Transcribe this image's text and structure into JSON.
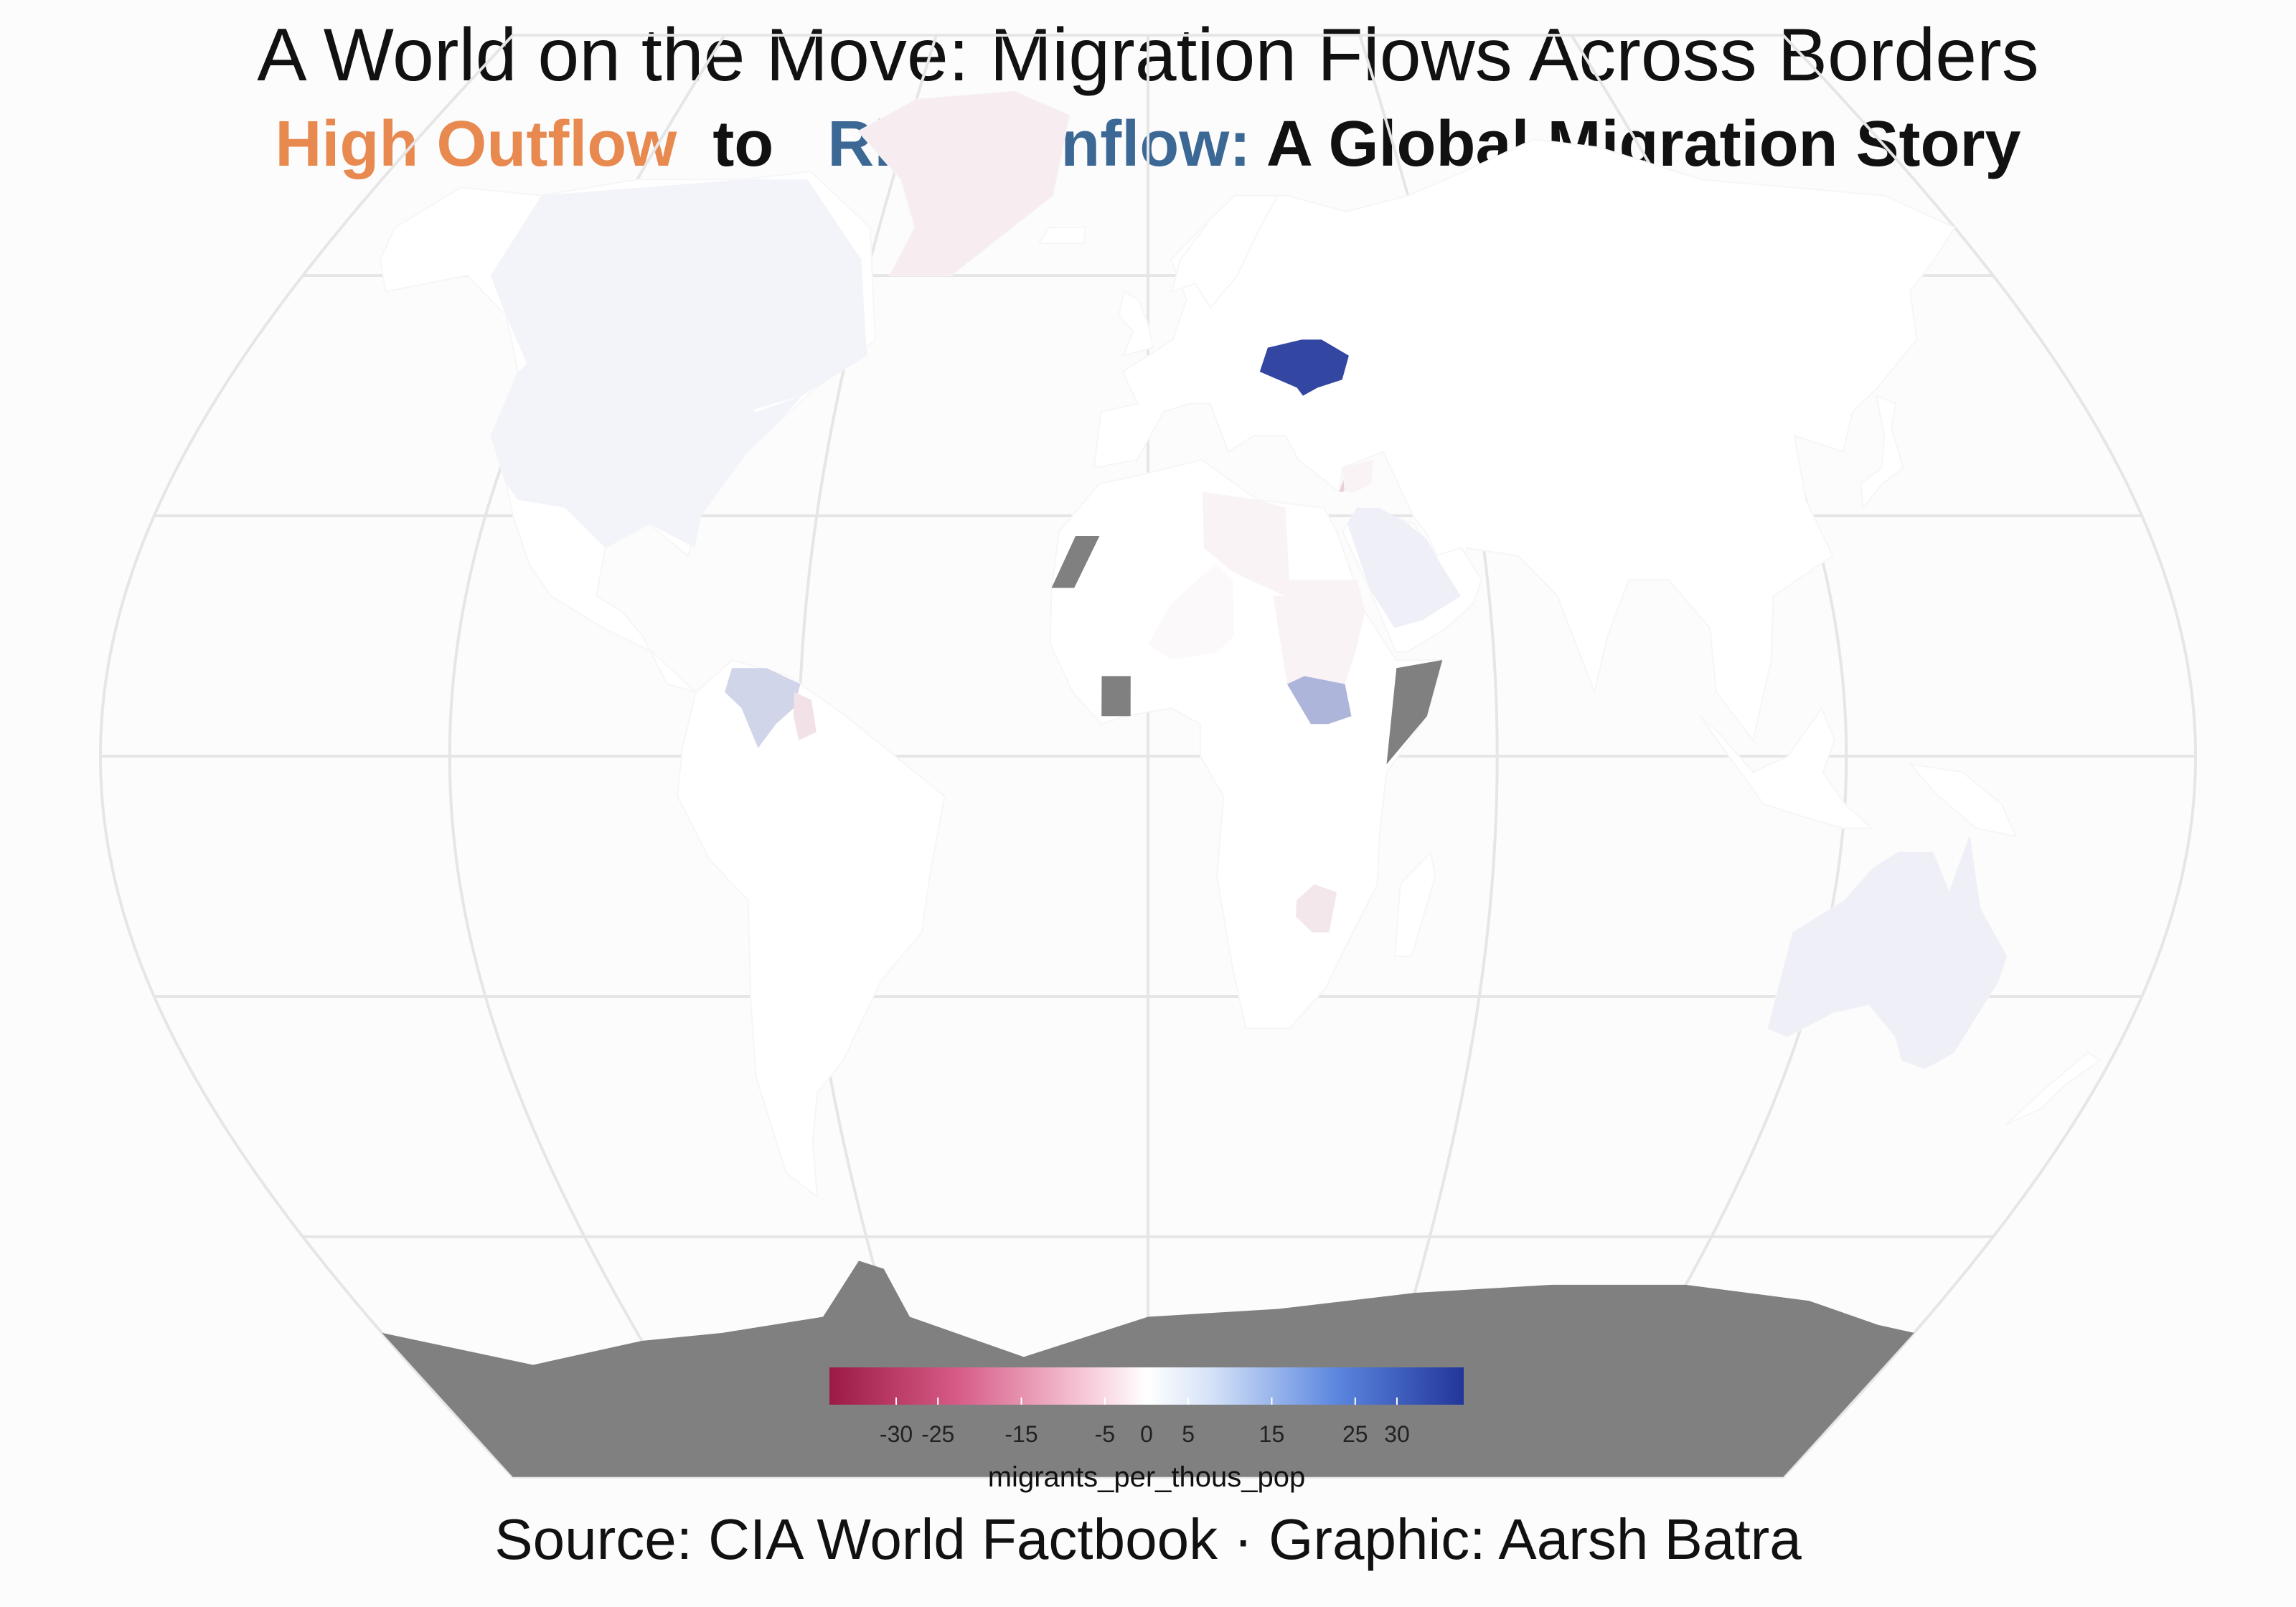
{
  "title": "A World on the Move: Migration Flows Across Borders",
  "subtitle": {
    "part1": "High Outflow",
    "part2": "to",
    "part3": "Rising Inflow:",
    "part4": "A Global Migration Story"
  },
  "caption": "Source: CIA World Factbook · Graphic: Aarsh Batra",
  "legend": {
    "title": "migrants_per_thous_pop",
    "min": -38,
    "max": 38,
    "ticks": [
      -30,
      -25,
      -15,
      -5,
      0,
      5,
      15,
      25,
      30
    ],
    "colors": {
      "low": "#9b1b45",
      "mid": "#ffffff",
      "high": "#22369a"
    }
  },
  "colors": {
    "outflow": "#e8894f",
    "inflow": "#3c6895",
    "no_data": "#808080",
    "graticule": "#e6e6e6",
    "land_default": "#ffffff"
  },
  "chart_data": {
    "type": "choropleth",
    "variable": "migrants_per_thous_pop",
    "projection": "robinson",
    "regions": [
      {
        "name": "Ukraine",
        "value": 35
      },
      {
        "name": "South Sudan",
        "value": 14
      },
      {
        "name": "Venezuela",
        "value": 8
      },
      {
        "name": "Saudi Arabia",
        "value": 3
      },
      {
        "name": "Australia",
        "value": 3
      },
      {
        "name": "Canada",
        "value": 2
      },
      {
        "name": "United States",
        "value": 2
      },
      {
        "name": "Greenland",
        "value": -3
      },
      {
        "name": "Guyana",
        "value": -5
      },
      {
        "name": "Lebanon",
        "value": -8
      },
      {
        "name": "Syria",
        "value": -2
      },
      {
        "name": "Zimbabwe",
        "value": -4
      },
      {
        "name": "Libya",
        "value": -2
      },
      {
        "name": "Niger",
        "value": -1
      },
      {
        "name": "Sudan",
        "value": -2
      },
      {
        "name": "Western Sahara",
        "value": null
      },
      {
        "name": "Cote d'Ivoire",
        "value": null
      },
      {
        "name": "Somalia",
        "value": null
      },
      {
        "name": "Antarctica",
        "value": null
      }
    ]
  }
}
